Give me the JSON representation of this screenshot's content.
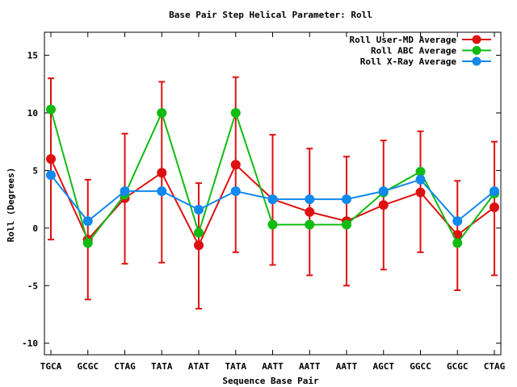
{
  "chart_data": {
    "type": "line",
    "title": "Base Pair Step Helical Parameter: Roll",
    "xlabel": "Sequence Base Pair",
    "ylabel": "Roll (Degrees)",
    "categories": [
      "TGCA",
      "GCGC",
      "CTAG",
      "TATA",
      "ATAT",
      "TATA",
      "AATT",
      "AATT",
      "AATT",
      "AGCT",
      "GGCC",
      "GCGC",
      "CTAG"
    ],
    "ylim": [
      -11,
      17
    ],
    "yticks": [
      -10,
      -5,
      0,
      5,
      10,
      15
    ],
    "legend_position": "top-right",
    "grid": false,
    "series": [
      {
        "name": "Roll User-MD Average",
        "color": "#dd1111",
        "values": [
          6.0,
          -1.0,
          2.6,
          4.8,
          -1.5,
          5.5,
          2.5,
          1.4,
          0.6,
          2.0,
          3.1,
          -0.6,
          1.8
        ],
        "err_low": [
          -1.0,
          -6.2,
          -3.1,
          -3.0,
          -7.0,
          -2.1,
          -3.2,
          -4.1,
          -5.0,
          -3.6,
          -2.1,
          -5.4,
          -4.1
        ],
        "err_high": [
          13.0,
          4.2,
          8.2,
          12.7,
          3.9,
          13.1,
          8.1,
          6.9,
          6.2,
          7.6,
          8.4,
          4.1,
          7.5
        ]
      },
      {
        "name": "Roll ABC Average",
        "color": "#11bb11",
        "values": [
          10.3,
          -1.3,
          2.9,
          10.0,
          -0.4,
          10.0,
          0.3,
          0.3,
          0.3,
          3.1,
          4.9,
          -1.3,
          3.0
        ]
      },
      {
        "name": "Roll X-Ray Average",
        "color": "#1188ee",
        "values": [
          4.6,
          0.6,
          3.2,
          3.2,
          1.6,
          3.2,
          2.5,
          2.5,
          2.5,
          3.2,
          4.2,
          0.6,
          3.2
        ]
      }
    ]
  }
}
